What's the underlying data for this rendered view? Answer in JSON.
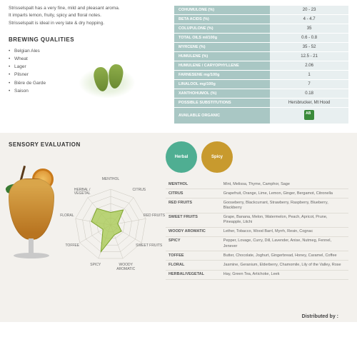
{
  "intro": {
    "line1": "Strisselspalt has a very fine, mild and pleasant aroma.",
    "line2": "It imparts lemon, fruity, spicy and floral notes.",
    "line3": "Strisselspalt is ideal in very late & dry hopping."
  },
  "brewing_qualities": {
    "title": "BREWING QUALITIES",
    "items": [
      "Belgian Ales",
      "Wheat",
      "Lager",
      "Pilsner",
      "Bière de Garde",
      "Saison"
    ]
  },
  "specs": {
    "header_bg": "#a9c7c4",
    "value_bg": "#e8eff0",
    "rows": [
      {
        "label": "COHUMULONE (%)",
        "value": "20 - 23"
      },
      {
        "label": "BETA ACIDS (%)",
        "value": "4 - 4.7"
      },
      {
        "label": "COLUPULONE (%)",
        "value": "35"
      },
      {
        "label": "TOTAL OILS ml/100g",
        "value": "0.6 - 0.8"
      },
      {
        "label": "MYRCENE (%)",
        "value": "35 - 52"
      },
      {
        "label": "HUMULENE (%)",
        "value": "12.5 - 21"
      },
      {
        "label": "HUMULENE / CARYOPHYLLENE",
        "value": "2.06"
      },
      {
        "label": "FARNESENE mg/100g",
        "value": "1"
      },
      {
        "label": "LINALOOL mg/100g",
        "value": "7"
      },
      {
        "label": "XANTHOHUMOL (%)",
        "value": "0.18"
      },
      {
        "label": "POSSIBLE SUBSTITUTIONS",
        "value": "Hersbrucker, Mt Hood"
      },
      {
        "label": "AVAILABLE ORGANIC",
        "value": ""
      }
    ]
  },
  "sensory": {
    "title": "SENSORY EVALUATION",
    "radar": {
      "axes": [
        "MENTHOL",
        "CITRUS",
        "RED FRUITS",
        "SWEET FRUITS",
        "WOODY AROMATIC",
        "SPICY",
        "TOFFEE",
        "FLORAL",
        "HERBAL / VEGETAL"
      ],
      "values": [
        0.35,
        0.55,
        0.2,
        0.35,
        0.3,
        0.8,
        0.25,
        0.55,
        0.6
      ],
      "max_rings": 5,
      "ring_color": "#c9c6bd",
      "fill_color": "#a6c84e",
      "fill_opacity": 0.75,
      "stroke_color": "#7fa52e",
      "label_fontsize": 5,
      "label_color": "#666666"
    },
    "badges": [
      {
        "label": "Herbal",
        "color": "#4fae92"
      },
      {
        "label": "Spicy",
        "color": "#c89a2e"
      }
    ],
    "descriptors": [
      {
        "label": "MENTHOL",
        "text": "Mint, Melissa, Thyme, Camphor, Sage"
      },
      {
        "label": "CITRUS",
        "text": "Grapefruit, Orange, Lime, Lemon, Ginger, Bergamot, Citronella"
      },
      {
        "label": "RED FRUITS",
        "text": "Gooseberry, Blackcurrant, Strawberry, Raspberry, Blueberry, Blackberry"
      },
      {
        "label": "SWEET FRUITS",
        "text": "Grape, Banana, Melon, Watermelon, Peach, Apricot, Prune, Pineapple, Litchi"
      },
      {
        "label": "WOODY AROMATIC",
        "text": "Lether, Tobacco, Wood Barrl, Myrrh, Resin, Cognac"
      },
      {
        "label": "SPICY",
        "text": "Pepper, Lovage, Curry, Dill, Lavender, Anise, Nutmeg, Fennel, Jenever"
      },
      {
        "label": "TOFFEE",
        "text": "Butter, Chocolate, Joghurt, Gingerbread, Honey, Caramel, Coffee"
      },
      {
        "label": "FLORAL",
        "text": "Jasmine, Geranium, Elderberry, Chamomile, Lily of the Valley, Rose"
      },
      {
        "label": "HERBAL/VEGETAL",
        "text": "Hay, Green Tea, Artichoke, Leek"
      }
    ]
  },
  "distributed": "Distributed by :"
}
